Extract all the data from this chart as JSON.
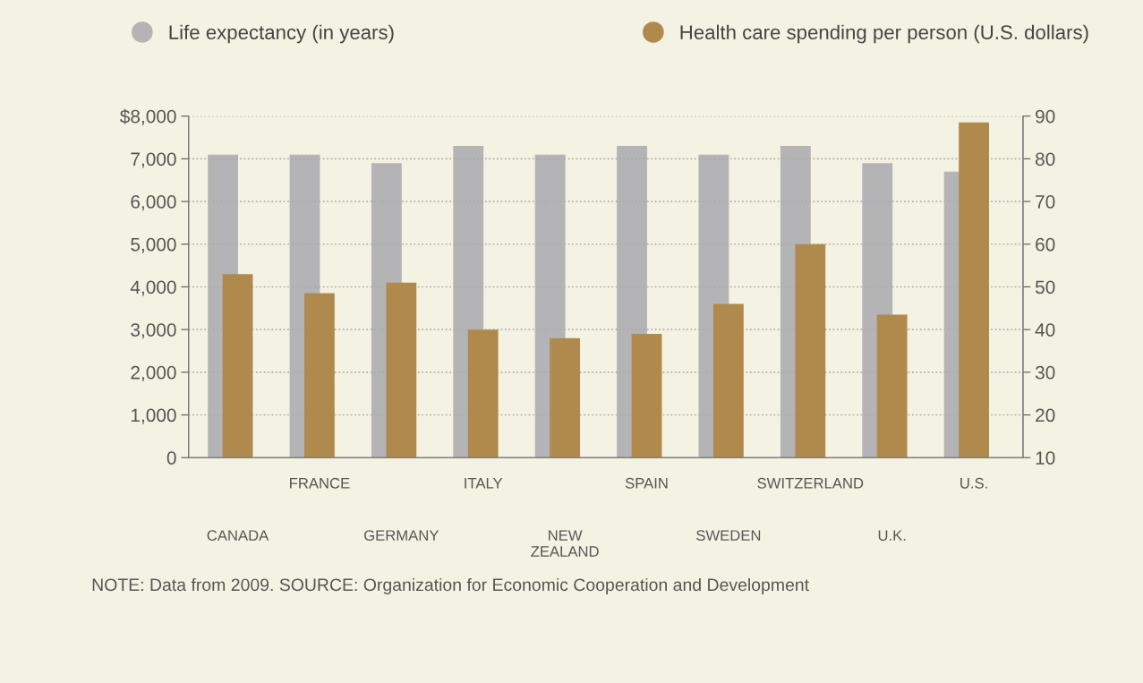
{
  "chart_data": {
    "type": "bar",
    "categories": [
      "CANADA",
      "FRANCE",
      "GERMANY",
      "ITALY",
      "NEW\nZEALAND",
      "SPAIN",
      "SWEDEN",
      "SWITZERLAND",
      "U.K.",
      "U.S."
    ],
    "series": [
      {
        "name": "Life expectancy (in years)",
        "color": "#b4b4b6",
        "axis": "y2",
        "values": [
          81,
          81,
          79,
          83,
          81,
          83,
          81,
          83,
          79,
          77
        ]
      },
      {
        "name": "Health care spending per person (U.S. dollars)",
        "color": "#b08a4c",
        "values": [
          4300,
          3850,
          4100,
          3000,
          2800,
          2900,
          3600,
          5000,
          3350,
          7850
        ]
      }
    ],
    "ylim": [
      0,
      8000
    ],
    "yticks": [
      0,
      {
        "value": 1000,
        "label": "1,000"
      },
      {
        "value": 2000,
        "label": "2,000"
      },
      {
        "value": 3000,
        "label": "3,000"
      },
      {
        "value": 4000,
        "label": "4,000"
      },
      {
        "value": 5000,
        "label": "5,000"
      },
      {
        "value": 6000,
        "label": "6,000"
      },
      {
        "value": 7000,
        "label": "7,000"
      },
      {
        "value": 8000,
        "label": "$8,000"
      }
    ],
    "y2lim": [
      10,
      90
    ],
    "y2ticks": [
      10,
      20,
      30,
      40,
      50,
      60,
      70,
      80,
      90
    ],
    "grid": "y",
    "legend": "top",
    "annotations": [
      "NOTE: Data from 2009. SOURCE: Organization for Economic Cooperation and Development"
    ]
  }
}
